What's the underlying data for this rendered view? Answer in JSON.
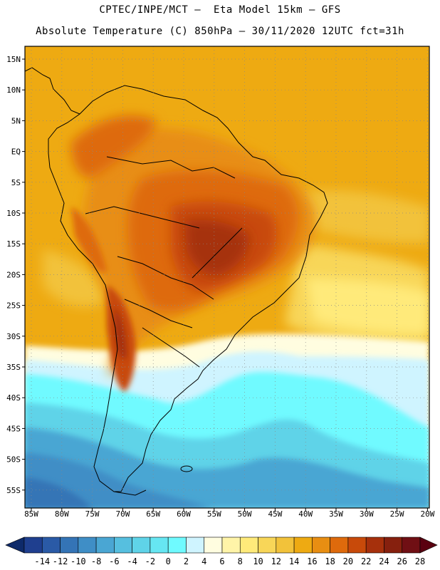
{
  "header": {
    "title_line1": "CPTEC/INPE/MCT –  Eta Model 15km – GFS",
    "title_line2": "Absolute Temperature (C) 850hPa – 30/11/2020 12UTC fct=31h"
  },
  "map": {
    "lat_labels": [
      "15N",
      "10N",
      "5N",
      "EQ",
      "5S",
      "10S",
      "15S",
      "20S",
      "25S",
      "30S",
      "35S",
      "40S",
      "45S",
      "50S",
      "55S"
    ],
    "lon_labels": [
      "85W",
      "80W",
      "75W",
      "70W",
      "65W",
      "60W",
      "55W",
      "50W",
      "45W",
      "40W",
      "35W",
      "30W",
      "25W",
      "20W"
    ],
    "grid": "dotted"
  },
  "colorbar": {
    "labels": [
      "-14",
      "-12",
      "-10",
      "-8",
      "-6",
      "-4",
      "-2",
      "0",
      "2",
      "4",
      "6",
      "8",
      "10",
      "12",
      "14",
      "16",
      "18",
      "20",
      "22",
      "24",
      "26",
      "28"
    ],
    "colors": [
      "#1f3f8f",
      "#2a5aa6",
      "#3474b6",
      "#3f8ec6",
      "#4aa6d3",
      "#56bfdf",
      "#5fd3e8",
      "#66e6f2",
      "#6ffaff",
      "#cff4ff",
      "#fffde0",
      "#fff4a8",
      "#ffea7a",
      "#f8d658",
      "#f2c23a",
      "#eeaa12",
      "#e88e12",
      "#de6a0c",
      "#c84a0a",
      "#a6300c",
      "#86200e",
      "#700f14"
    ],
    "under_color": "#0e2a6a",
    "over_color": "#5a0010"
  }
}
